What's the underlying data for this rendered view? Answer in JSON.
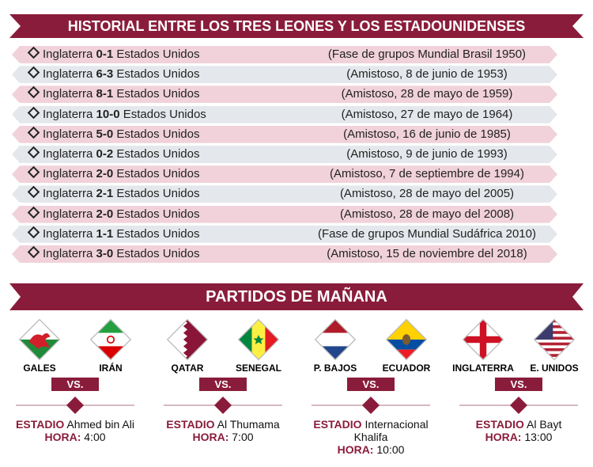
{
  "header": {
    "title": "HISTORIAL ENTRE LOS TRES LEONES Y LOS ESTADOUNIDENSES"
  },
  "rows": [
    {
      "team1": "Inglaterra",
      "score": "0-1",
      "team2": "Estados Unidos",
      "note": "(Fase de grupos Mundial Brasil 1950)"
    },
    {
      "team1": "Inglaterra",
      "score": "6-3",
      "team2": "Estados Unidos",
      "note": "(Amistoso, 8 de junio de 1953)"
    },
    {
      "team1": "Inglaterra",
      "score": "8-1",
      "team2": "Estados Unidos",
      "note": "(Amistoso, 28 de mayo de 1959)"
    },
    {
      "team1": "Inglaterra",
      "score": "10-0",
      "team2": "Estados Unidos",
      "note": "(Amistoso, 27 de mayo de 1964)"
    },
    {
      "team1": "Inglaterra",
      "score": "5-0",
      "team2": "Estados Unidos",
      "note": "(Amistoso, 16 de junio de 1985)"
    },
    {
      "team1": "Inglaterra",
      "score": "0-2",
      "team2": "Estados Unidos",
      "note": "(Amistoso, 9 de junio de 1993)"
    },
    {
      "team1": "Inglaterra",
      "score": "2-0",
      "team2": "Estados Unidos",
      "note": "(Amistoso, 7 de septiembre de 1994)"
    },
    {
      "team1": "Inglaterra",
      "score": "2-1",
      "team2": "Estados Unidos",
      "note": "(Amistoso, 28 de mayo del 2005)"
    },
    {
      "team1": "Inglaterra",
      "score": "2-0",
      "team2": "Estados Unidos",
      "note": "(Amistoso, 28 de mayo del 2008)"
    },
    {
      "team1": "Inglaterra",
      "score": "1-1",
      "team2": "Estados Unidos",
      "note": "(Fase de grupos Mundial Sudáfrica 2010)"
    },
    {
      "team1": "Inglaterra",
      "score": "3-0",
      "team2": "Estados Unidos",
      "note": "(Amistoso, 15 de noviembre del 2018)"
    }
  ],
  "section": {
    "title": "PARTIDOS DE MAÑANA"
  },
  "matches": [
    {
      "team1": "GALES",
      "team2": "IRÁN",
      "vs": "VS.",
      "stadium_label": "ESTADIO",
      "stadium": "Ahmed bin Ali",
      "time_label": "HORA:",
      "time": "4:00"
    },
    {
      "team1": "QATAR",
      "team2": "SENEGAL",
      "vs": "VS.",
      "stadium_label": "ESTADIO",
      "stadium": "Al Thumama",
      "time_label": "HORA:",
      "time": "7:00"
    },
    {
      "team1": "P. BAJOS",
      "team2": "ECUADOR",
      "vs": "VS.",
      "stadium_label": "ESTADIO",
      "stadium": "Internacional Khalifa",
      "time_label": "HORA:",
      "time": "10:00"
    },
    {
      "team1": "INGLATERRA",
      "team2": "E. UNIDOS",
      "vs": "VS.",
      "stadium_label": "ESTADIO",
      "stadium": "Al Bayt",
      "time_label": "HORA:",
      "time": "13:00"
    }
  ]
}
